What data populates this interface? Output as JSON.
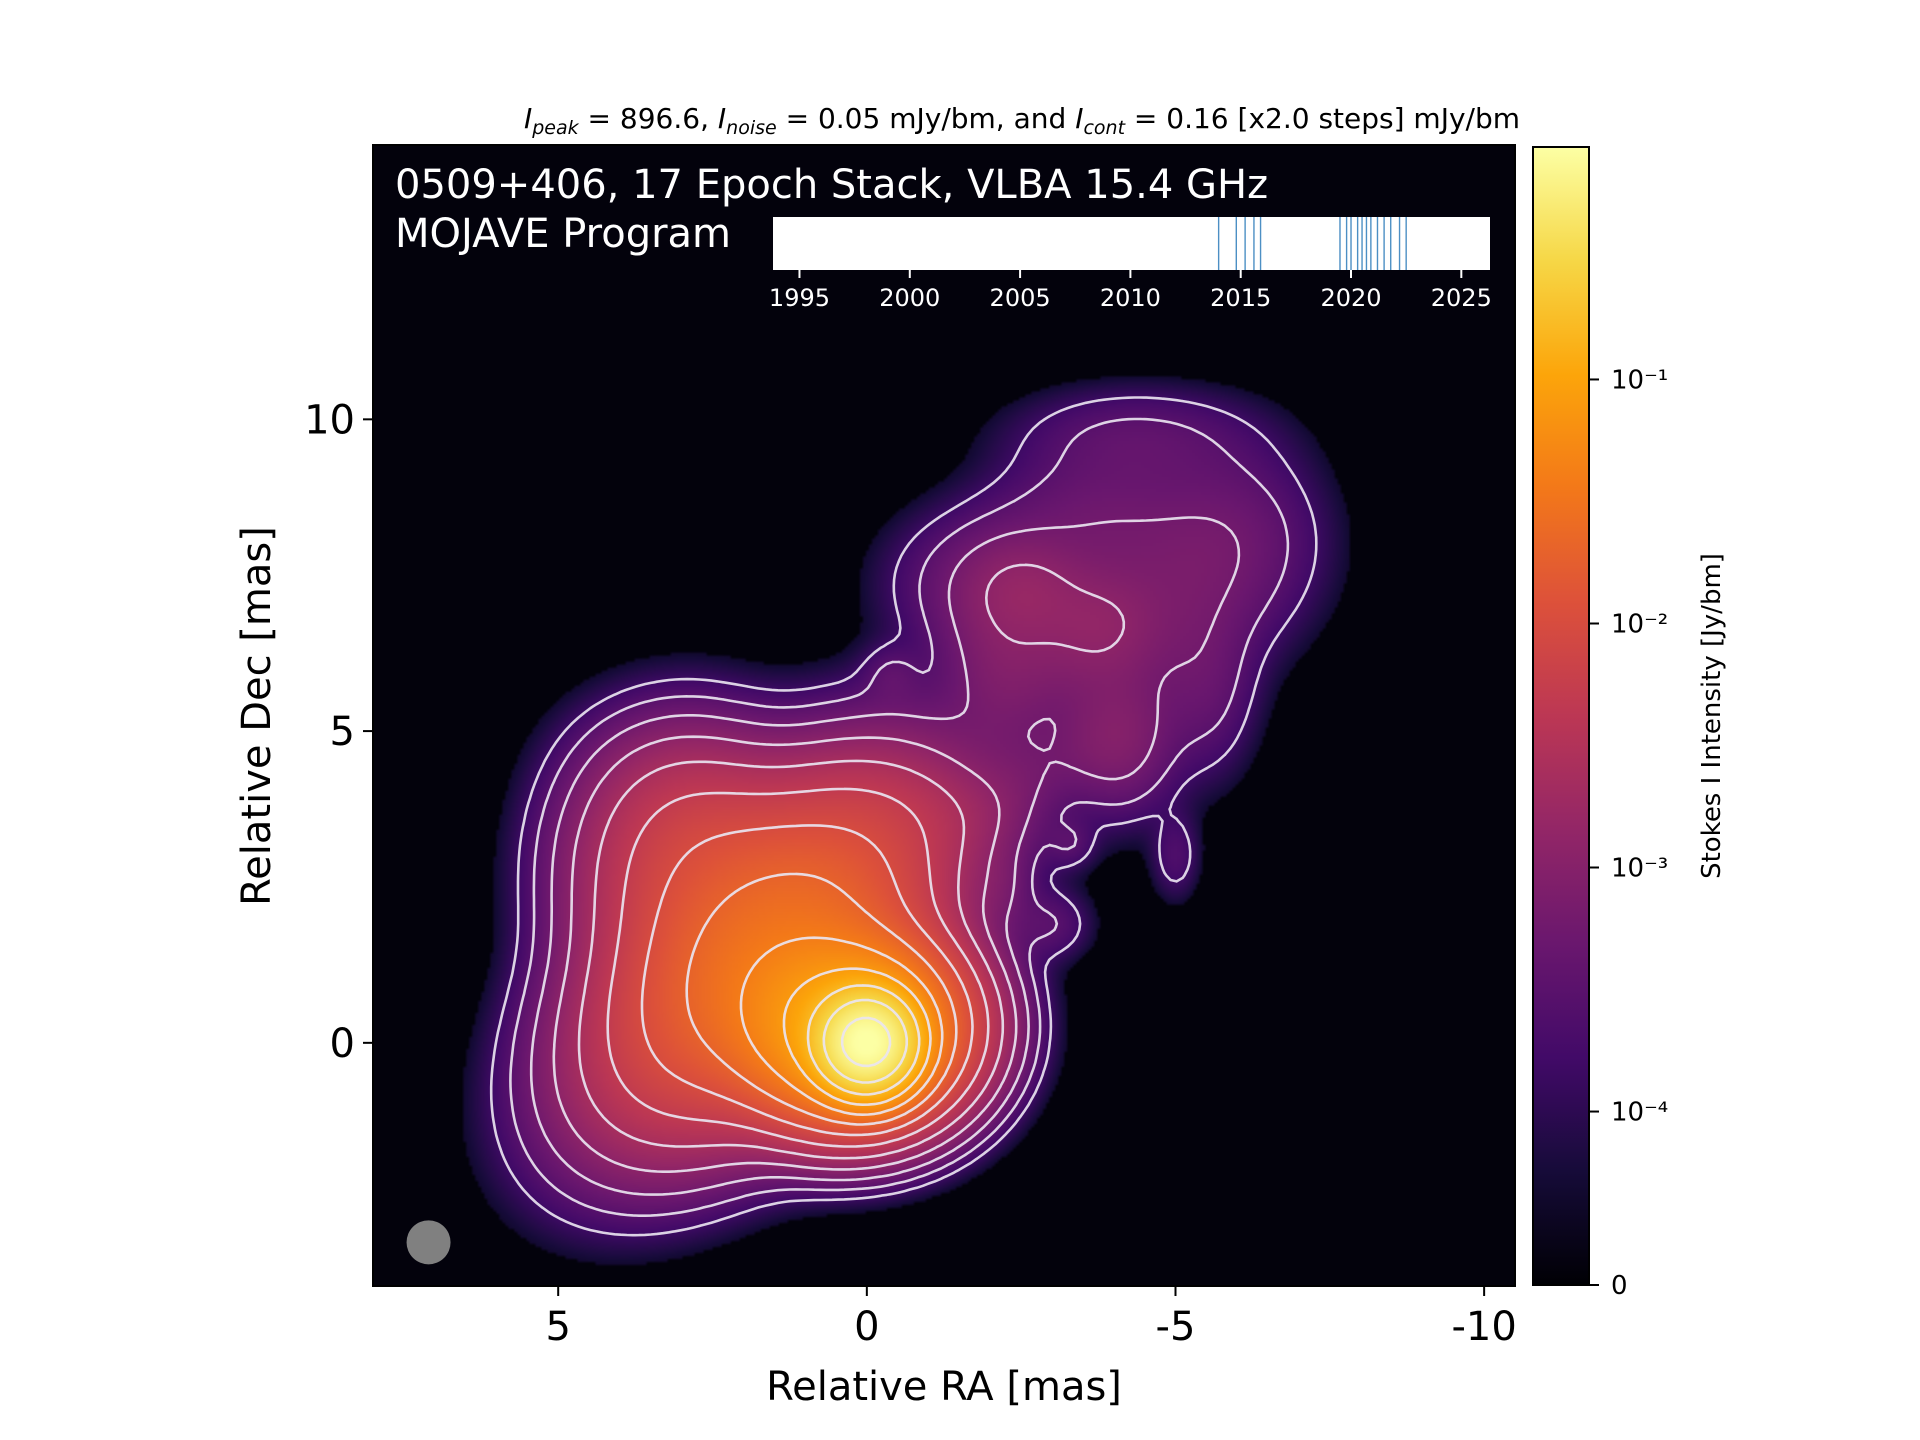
{
  "chart_data": {
    "type": "heatmap",
    "title": {
      "peak_sym": "I",
      "peak_sub": "peak",
      "peak_text": " = 896.6, ",
      "noise_sym": "I",
      "noise_sub": "noise",
      "noise_text": " = 0.05 mJy/bm, and ",
      "cont_sym": "I",
      "cont_sub": "cont",
      "cont_text": " = 0.16 [x2.0 steps] mJy/bm"
    },
    "annotation_line1": "0509+406, 17 Epoch Stack, VLBA 15.4 GHz",
    "annotation_line2": "MOJAVE Program",
    "xlabel": "Relative RA [mas]",
    "ylabel": "Relative Dec [mas]",
    "xlim": [
      8,
      -10.5
    ],
    "ylim": [
      -3.9,
      14.4
    ],
    "xticks": [
      5,
      0,
      -5,
      -10
    ],
    "xtick_labels": [
      "5",
      "0",
      "-5",
      "-10"
    ],
    "yticks": [
      0,
      5,
      10
    ],
    "ytick_labels": [
      "0",
      "5",
      "10"
    ],
    "colorbar": {
      "label": "Stokes I Intensity [Jy/bm]",
      "scale": "log",
      "ticks": [
        0,
        0.0001,
        0.001,
        0.01,
        0.1
      ],
      "tick_labels": [
        "0",
        "10⁻⁴",
        "10⁻³",
        "10⁻²",
        "10⁻¹"
      ],
      "colormap": "inferno"
    },
    "epoch_timeline": {
      "range": [
        1993.8,
        2026.3
      ],
      "ticks": [
        1995,
        2000,
        2005,
        2010,
        2015,
        2020,
        2025
      ],
      "tick_labels": [
        "1995",
        "2000",
        "2005",
        "2010",
        "2015",
        "2020",
        "2025"
      ],
      "epochs": [
        2014.0,
        2014.8,
        2015.2,
        2015.6,
        2015.9,
        2019.5,
        2019.8,
        2020.0,
        2020.3,
        2020.5,
        2020.7,
        2020.9,
        2021.2,
        2021.5,
        2021.8,
        2022.2,
        2022.5
      ],
      "line_color": "#4c8fc4"
    },
    "beam": {
      "x": 7.1,
      "y": -3.2,
      "color": "#808080"
    },
    "contour_color": "#e9e4f0",
    "core": {
      "x": 0,
      "y": 0,
      "peak_jy": 0.8966
    },
    "components": [
      {
        "x": 0,
        "y": 0,
        "amp": 0.85,
        "sx": 0.42,
        "sy": 0.42,
        "pa": 0
      },
      {
        "x": 0.3,
        "y": 0.25,
        "amp": 0.12,
        "sx": 0.9,
        "sy": 0.75,
        "pa": 0
      },
      {
        "x": 1.6,
        "y": 1.4,
        "amp": 0.028,
        "sx": 1.7,
        "sy": 1.0,
        "pa": -45
      },
      {
        "x": 2.9,
        "y": 2.8,
        "amp": 0.0065,
        "sx": 1.0,
        "sy": 1.1,
        "pa": 0
      },
      {
        "x": 2.0,
        "y": 3.2,
        "amp": 0.0012,
        "sx": 1.3,
        "sy": 0.7,
        "pa": 30
      },
      {
        "x": -0.6,
        "y": 3.8,
        "amp": 0.00065,
        "sx": 1.2,
        "sy": 0.45,
        "pa": 10
      },
      {
        "x": -2.6,
        "y": 4.2,
        "amp": 0.00035,
        "sx": 1.2,
        "sy": 0.45,
        "pa": -30
      },
      {
        "x": -4.1,
        "y": 4.8,
        "amp": 0.00075,
        "sx": 0.55,
        "sy": 0.7,
        "pa": 0
      },
      {
        "x": -3.4,
        "y": 6.4,
        "amp": 0.00065,
        "sx": 1.1,
        "sy": 0.9,
        "pa": 0
      },
      {
        "x": -2.2,
        "y": 6.1,
        "amp": 0.00055,
        "sx": 0.6,
        "sy": 1.0,
        "pa": 0
      },
      {
        "x": -2.6,
        "y": 7.3,
        "amp": 0.0007,
        "sx": 0.6,
        "sy": 0.5,
        "pa": 0
      },
      {
        "x": -1.8,
        "y": 7.4,
        "amp": 0.00045,
        "sx": 0.9,
        "sy": 0.7,
        "pa": 0
      },
      {
        "x": -3.8,
        "y": 6.7,
        "amp": 0.0006,
        "sx": 0.6,
        "sy": 0.55,
        "pa": 0
      },
      {
        "x": -3.6,
        "y": 8.5,
        "amp": 0.0004,
        "sx": 1.0,
        "sy": 0.6,
        "pa": 0
      },
      {
        "x": -5.0,
        "y": 7.4,
        "amp": 0.00042,
        "sx": 1.1,
        "sy": 0.9,
        "pa": 0
      },
      {
        "x": -5.9,
        "y": 8.2,
        "amp": 0.0004,
        "sx": 0.9,
        "sy": 0.9,
        "pa": 0
      },
      {
        "x": -4.3,
        "y": 9.7,
        "amp": 0.00035,
        "sx": 1.2,
        "sy": 0.5,
        "pa": 0
      },
      {
        "x": -5.5,
        "y": 5.7,
        "amp": 0.00035,
        "sx": 0.5,
        "sy": 0.9,
        "pa": 0
      },
      {
        "x": -0.4,
        "y": 5.9,
        "amp": 0.00023,
        "sx": 0.3,
        "sy": 0.3,
        "pa": 0
      },
      {
        "x": -2.2,
        "y": 2.5,
        "amp": 0.00025,
        "sx": 0.3,
        "sy": 0.4,
        "pa": 0
      },
      {
        "x": -3.0,
        "y": 1.9,
        "amp": 0.00028,
        "sx": 0.4,
        "sy": 0.35,
        "pa": 0
      },
      {
        "x": -3.3,
        "y": 3.2,
        "amp": 0.00022,
        "sx": 0.25,
        "sy": 0.25,
        "pa": 0
      },
      {
        "x": -5.0,
        "y": 3.0,
        "amp": 0.00024,
        "sx": 0.25,
        "sy": 0.45,
        "pa": 0
      }
    ]
  }
}
